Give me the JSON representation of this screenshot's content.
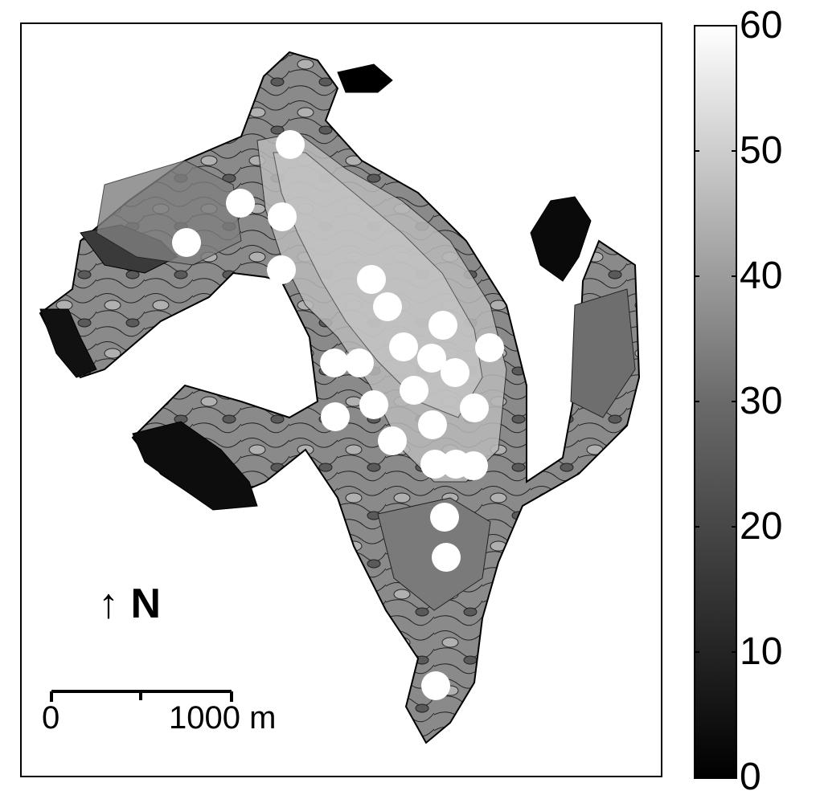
{
  "colorbar": {
    "ticks": [
      "60",
      "50",
      "40",
      "30",
      "20",
      "10",
      "0"
    ],
    "range": [
      0,
      60
    ],
    "gradient": [
      "#000000",
      "#ffffff"
    ]
  },
  "north_arrow": {
    "arrow": "↑",
    "letter": "N"
  },
  "scale_bar": {
    "start_label": "0",
    "end_label": "1000 m"
  },
  "colors": {
    "frame": "#000000",
    "land_light": "#c8c8c8",
    "land_dark": "#2a2a2a",
    "markers": "#ffffff"
  }
}
